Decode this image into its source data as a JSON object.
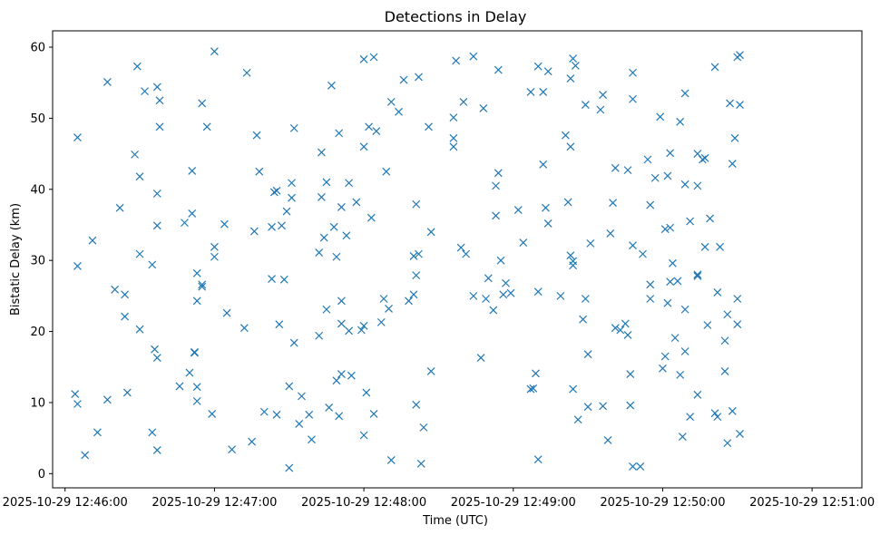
{
  "chart_data": {
    "type": "scatter",
    "title": "Detections in Delay",
    "xlabel": "Time (UTC)",
    "ylabel": "Bistatic Delay (km)",
    "x_type": "datetime",
    "xlim": [
      "2025-10-29 12:45:55",
      "2025-10-29 12:51:20"
    ],
    "ylim": [
      -2.0,
      62.3
    ],
    "x_ticks": [
      "2025-10-29 12:46:00",
      "2025-10-29 12:47:00",
      "2025-10-29 12:48:00",
      "2025-10-29 12:49:00",
      "2025-10-29 12:50:00",
      "2025-10-29 12:51:00"
    ],
    "x_tick_labels": [
      "2025-10-29 12:46:00",
      "2025-10-29 12:47:00",
      "2025-10-29 12:48:00",
      "2025-10-29 12:49:00",
      "2025-10-29 12:50:00",
      "2025-10-29 12:51:00"
    ],
    "y_ticks": [
      0,
      10,
      20,
      30,
      40,
      50,
      60
    ],
    "y_tick_labels": [
      "0",
      "10",
      "20",
      "30",
      "40",
      "50",
      "60"
    ],
    "marker": "x",
    "color": "#1f77b4",
    "grid": false,
    "legend": "none",
    "points": [
      [
        "2025-10-29 12:46:04",
        11.2
      ],
      [
        "2025-10-29 12:46:05",
        9.8
      ],
      [
        "2025-10-29 12:46:05",
        47.3
      ],
      [
        "2025-10-29 12:46:05",
        29.2
      ],
      [
        "2025-10-29 12:46:08",
        2.6
      ],
      [
        "2025-10-29 12:46:11",
        32.8
      ],
      [
        "2025-10-29 12:46:13",
        5.8
      ],
      [
        "2025-10-29 12:46:17",
        55.1
      ],
      [
        "2025-10-29 12:46:17",
        10.4
      ],
      [
        "2025-10-29 12:46:20",
        25.9
      ],
      [
        "2025-10-29 12:46:22",
        37.4
      ],
      [
        "2025-10-29 12:46:24",
        25.2
      ],
      [
        "2025-10-29 12:46:24",
        22.1
      ],
      [
        "2025-10-29 12:46:25",
        11.4
      ],
      [
        "2025-10-29 12:46:28",
        44.9
      ],
      [
        "2025-10-29 12:46:29",
        57.3
      ],
      [
        "2025-10-29 12:46:30",
        41.8
      ],
      [
        "2025-10-29 12:46:30",
        30.9
      ],
      [
        "2025-10-29 12:46:30",
        20.3
      ],
      [
        "2025-10-29 12:46:32",
        53.8
      ],
      [
        "2025-10-29 12:46:35",
        29.4
      ],
      [
        "2025-10-29 12:46:35",
        5.8
      ],
      [
        "2025-10-29 12:46:36",
        17.5
      ],
      [
        "2025-10-29 12:46:37",
        54.4
      ],
      [
        "2025-10-29 12:46:37",
        39.4
      ],
      [
        "2025-10-29 12:46:37",
        34.9
      ],
      [
        "2025-10-29 12:46:37",
        16.3
      ],
      [
        "2025-10-29 12:46:37",
        3.3
      ],
      [
        "2025-10-29 12:46:38",
        52.5
      ],
      [
        "2025-10-29 12:46:38",
        48.8
      ],
      [
        "2025-10-29 12:46:46",
        12.3
      ],
      [
        "2025-10-29 12:46:48",
        35.3
      ],
      [
        "2025-10-29 12:46:50",
        14.2
      ],
      [
        "2025-10-29 12:46:51",
        42.6
      ],
      [
        "2025-10-29 12:46:51",
        36.6
      ],
      [
        "2025-10-29 12:46:52",
        17.0
      ],
      [
        "2025-10-29 12:46:52",
        17.1
      ],
      [
        "2025-10-29 12:46:53",
        28.2
      ],
      [
        "2025-10-29 12:46:53",
        24.3
      ],
      [
        "2025-10-29 12:46:53",
        12.2
      ],
      [
        "2025-10-29 12:46:53",
        10.2
      ],
      [
        "2025-10-29 12:46:55",
        26.6
      ],
      [
        "2025-10-29 12:46:55",
        26.3
      ],
      [
        "2025-10-29 12:46:55",
        52.1
      ],
      [
        "2025-10-29 12:46:57",
        48.8
      ],
      [
        "2025-10-29 12:46:59",
        8.4
      ],
      [
        "2025-10-29 12:47:00",
        59.4
      ],
      [
        "2025-10-29 12:47:00",
        31.9
      ],
      [
        "2025-10-29 12:47:00",
        30.5
      ],
      [
        "2025-10-29 12:47:04",
        35.1
      ],
      [
        "2025-10-29 12:47:05",
        22.6
      ],
      [
        "2025-10-29 12:47:07",
        3.4
      ],
      [
        "2025-10-29 12:47:12",
        20.5
      ],
      [
        "2025-10-29 12:47:13",
        56.4
      ],
      [
        "2025-10-29 12:47:15",
        4.5
      ],
      [
        "2025-10-29 12:47:16",
        34.1
      ],
      [
        "2025-10-29 12:47:17",
        47.6
      ],
      [
        "2025-10-29 12:47:18",
        42.5
      ],
      [
        "2025-10-29 12:47:20",
        8.7
      ],
      [
        "2025-10-29 12:47:23",
        34.7
      ],
      [
        "2025-10-29 12:47:23",
        27.4
      ],
      [
        "2025-10-29 12:47:24",
        39.6
      ],
      [
        "2025-10-29 12:47:25",
        8.3
      ],
      [
        "2025-10-29 12:47:25",
        39.8
      ],
      [
        "2025-10-29 12:47:26",
        21.0
      ],
      [
        "2025-10-29 12:47:27",
        34.9
      ],
      [
        "2025-10-29 12:47:28",
        27.3
      ],
      [
        "2025-10-29 12:47:29",
        36.9
      ],
      [
        "2025-10-29 12:47:30",
        12.3
      ],
      [
        "2025-10-29 12:47:30",
        0.8
      ],
      [
        "2025-10-29 12:47:31",
        40.9
      ],
      [
        "2025-10-29 12:47:31",
        38.8
      ],
      [
        "2025-10-29 12:47:32",
        48.6
      ],
      [
        "2025-10-29 12:47:32",
        18.4
      ],
      [
        "2025-10-29 12:47:34",
        7.0
      ],
      [
        "2025-10-29 12:47:35",
        10.9
      ],
      [
        "2025-10-29 12:47:38",
        8.3
      ],
      [
        "2025-10-29 12:47:39",
        4.8
      ],
      [
        "2025-10-29 12:47:42",
        31.1
      ],
      [
        "2025-10-29 12:47:42",
        19.4
      ],
      [
        "2025-10-29 12:47:43",
        45.2
      ],
      [
        "2025-10-29 12:47:43",
        38.9
      ],
      [
        "2025-10-29 12:47:44",
        33.2
      ],
      [
        "2025-10-29 12:47:45",
        41.0
      ],
      [
        "2025-10-29 12:47:45",
        23.1
      ],
      [
        "2025-10-29 12:47:46",
        9.3
      ],
      [
        "2025-10-29 12:47:47",
        54.6
      ],
      [
        "2025-10-29 12:47:48",
        34.7
      ],
      [
        "2025-10-29 12:47:49",
        30.5
      ],
      [
        "2025-10-29 12:47:49",
        13.1
      ],
      [
        "2025-10-29 12:47:50",
        8.1
      ],
      [
        "2025-10-29 12:47:50",
        47.9
      ],
      [
        "2025-10-29 12:47:51",
        37.5
      ],
      [
        "2025-10-29 12:47:51",
        24.3
      ],
      [
        "2025-10-29 12:47:51",
        21.1
      ],
      [
        "2025-10-29 12:47:51",
        14.0
      ],
      [
        "2025-10-29 12:47:53",
        33.5
      ],
      [
        "2025-10-29 12:47:54",
        40.9
      ],
      [
        "2025-10-29 12:47:54",
        20.1
      ],
      [
        "2025-10-29 12:47:55",
        13.8
      ],
      [
        "2025-10-29 12:47:57",
        38.2
      ],
      [
        "2025-10-29 12:47:59",
        20.2
      ],
      [
        "2025-10-29 12:48:00",
        5.4
      ],
      [
        "2025-10-29 12:48:00",
        20.8
      ],
      [
        "2025-10-29 12:48:00",
        58.3
      ],
      [
        "2025-10-29 12:48:00",
        46.0
      ],
      [
        "2025-10-29 12:48:01",
        11.4
      ],
      [
        "2025-10-29 12:48:02",
        48.8
      ],
      [
        "2025-10-29 12:48:03",
        36.0
      ],
      [
        "2025-10-29 12:48:04",
        58.6
      ],
      [
        "2025-10-29 12:48:04",
        8.4
      ],
      [
        "2025-10-29 12:48:05",
        48.2
      ],
      [
        "2025-10-29 12:48:07",
        21.3
      ],
      [
        "2025-10-29 12:48:08",
        24.6
      ],
      [
        "2025-10-29 12:48:09",
        42.5
      ],
      [
        "2025-10-29 12:48:10",
        23.2
      ],
      [
        "2025-10-29 12:48:11",
        1.9
      ],
      [
        "2025-10-29 12:48:11",
        52.3
      ],
      [
        "2025-10-29 12:48:14",
        50.9
      ],
      [
        "2025-10-29 12:48:16",
        55.4
      ],
      [
        "2025-10-29 12:48:18",
        24.3
      ],
      [
        "2025-10-29 12:48:20",
        25.2
      ],
      [
        "2025-10-29 12:48:20",
        30.6
      ],
      [
        "2025-10-29 12:48:21",
        37.9
      ],
      [
        "2025-10-29 12:48:21",
        27.9
      ],
      [
        "2025-10-29 12:48:21",
        9.7
      ],
      [
        "2025-10-29 12:48:22",
        55.8
      ],
      [
        "2025-10-29 12:48:22",
        30.9
      ],
      [
        "2025-10-29 12:48:23",
        1.4
      ],
      [
        "2025-10-29 12:48:24",
        6.5
      ],
      [
        "2025-10-29 12:48:26",
        48.8
      ],
      [
        "2025-10-29 12:48:27",
        34.0
      ],
      [
        "2025-10-29 12:48:27",
        14.4
      ],
      [
        "2025-10-29 12:48:36",
        50.1
      ],
      [
        "2025-10-29 12:48:36",
        47.2
      ],
      [
        "2025-10-29 12:48:36",
        46.0
      ],
      [
        "2025-10-29 12:48:37",
        58.1
      ],
      [
        "2025-10-29 12:48:39",
        31.8
      ],
      [
        "2025-10-29 12:48:40",
        52.3
      ],
      [
        "2025-10-29 12:48:41",
        30.9
      ],
      [
        "2025-10-29 12:48:44",
        58.7
      ],
      [
        "2025-10-29 12:48:44",
        25.0
      ],
      [
        "2025-10-29 12:48:47",
        16.3
      ],
      [
        "2025-10-29 12:48:48",
        51.4
      ],
      [
        "2025-10-29 12:48:49",
        24.6
      ],
      [
        "2025-10-29 12:48:50",
        27.5
      ],
      [
        "2025-10-29 12:48:52",
        23.0
      ],
      [
        "2025-10-29 12:48:53",
        36.3
      ],
      [
        "2025-10-29 12:48:53",
        40.5
      ],
      [
        "2025-10-29 12:48:54",
        42.3
      ],
      [
        "2025-10-29 12:48:54",
        56.8
      ],
      [
        "2025-10-29 12:48:55",
        30.0
      ],
      [
        "2025-10-29 12:48:56",
        25.2
      ],
      [
        "2025-10-29 12:48:57",
        26.8
      ],
      [
        "2025-10-29 12:48:59",
        25.4
      ],
      [
        "2025-10-29 12:49:02",
        37.1
      ],
      [
        "2025-10-29 12:49:04",
        32.5
      ],
      [
        "2025-10-29 12:49:07",
        53.7
      ],
      [
        "2025-10-29 12:49:07",
        11.9
      ],
      [
        "2025-10-29 12:49:08",
        12.0
      ],
      [
        "2025-10-29 12:49:09",
        14.1
      ],
      [
        "2025-10-29 12:49:10",
        57.3
      ],
      [
        "2025-10-29 12:49:10",
        25.6
      ],
      [
        "2025-10-29 12:49:10",
        2.0
      ],
      [
        "2025-10-29 12:49:12",
        53.7
      ],
      [
        "2025-10-29 12:49:12",
        43.5
      ],
      [
        "2025-10-29 12:49:13",
        37.4
      ],
      [
        "2025-10-29 12:49:14",
        35.2
      ],
      [
        "2025-10-29 12:49:14",
        56.6
      ],
      [
        "2025-10-29 12:49:19",
        25.0
      ],
      [
        "2025-10-29 12:49:21",
        47.6
      ],
      [
        "2025-10-29 12:49:22",
        38.2
      ],
      [
        "2025-10-29 12:49:23",
        55.6
      ],
      [
        "2025-10-29 12:49:23",
        46.0
      ],
      [
        "2025-10-29 12:49:23",
        30.7
      ],
      [
        "2025-10-29 12:49:24",
        29.9
      ],
      [
        "2025-10-29 12:49:24",
        29.3
      ],
      [
        "2025-10-29 12:49:24",
        11.9
      ],
      [
        "2025-10-29 12:49:24",
        58.4
      ],
      [
        "2025-10-29 12:49:25",
        57.4
      ],
      [
        "2025-10-29 12:49:26",
        7.6
      ],
      [
        "2025-10-29 12:49:28",
        21.7
      ],
      [
        "2025-10-29 12:49:29",
        51.9
      ],
      [
        "2025-10-29 12:49:29",
        24.6
      ],
      [
        "2025-10-29 12:49:30",
        16.8
      ],
      [
        "2025-10-29 12:49:30",
        9.4
      ],
      [
        "2025-10-29 12:49:31",
        32.4
      ],
      [
        "2025-10-29 12:49:35",
        51.2
      ],
      [
        "2025-10-29 12:49:36",
        53.3
      ],
      [
        "2025-10-29 12:49:36",
        9.5
      ],
      [
        "2025-10-29 12:49:38",
        4.7
      ],
      [
        "2025-10-29 12:49:39",
        33.8
      ],
      [
        "2025-10-29 12:49:40",
        38.1
      ],
      [
        "2025-10-29 12:49:41",
        20.5
      ],
      [
        "2025-10-29 12:49:41",
        43.0
      ],
      [
        "2025-10-29 12:49:43",
        20.2
      ],
      [
        "2025-10-29 12:49:45",
        21.1
      ],
      [
        "2025-10-29 12:49:46",
        42.7
      ],
      [
        "2025-10-29 12:49:46",
        19.5
      ],
      [
        "2025-10-29 12:49:47",
        14.0
      ],
      [
        "2025-10-29 12:49:47",
        9.6
      ],
      [
        "2025-10-29 12:49:48",
        56.4
      ],
      [
        "2025-10-29 12:49:48",
        52.7
      ],
      [
        "2025-10-29 12:49:48",
        32.1
      ],
      [
        "2025-10-29 12:49:48",
        1.0
      ],
      [
        "2025-10-29 12:49:51",
        1.0
      ],
      [
        "2025-10-29 12:49:52",
        30.9
      ],
      [
        "2025-10-29 12:49:54",
        44.2
      ],
      [
        "2025-10-29 12:49:55",
        37.8
      ],
      [
        "2025-10-29 12:49:55",
        26.6
      ],
      [
        "2025-10-29 12:49:55",
        24.6
      ],
      [
        "2025-10-29 12:49:57",
        41.6
      ],
      [
        "2025-10-29 12:49:59",
        50.2
      ],
      [
        "2025-10-29 12:50:00",
        14.8
      ],
      [
        "2025-10-29 12:50:01",
        34.4
      ],
      [
        "2025-10-29 12:50:01",
        16.5
      ],
      [
        "2025-10-29 12:50:02",
        41.9
      ],
      [
        "2025-10-29 12:50:02",
        24.0
      ],
      [
        "2025-10-29 12:50:03",
        45.1
      ],
      [
        "2025-10-29 12:50:03",
        34.6
      ],
      [
        "2025-10-29 12:50:03",
        27.0
      ],
      [
        "2025-10-29 12:50:04",
        29.6
      ],
      [
        "2025-10-29 12:50:05",
        19.1
      ],
      [
        "2025-10-29 12:50:06",
        27.1
      ],
      [
        "2025-10-29 12:50:07",
        49.5
      ],
      [
        "2025-10-29 12:50:07",
        13.9
      ],
      [
        "2025-10-29 12:50:08",
        5.2
      ],
      [
        "2025-10-29 12:50:09",
        53.5
      ],
      [
        "2025-10-29 12:50:09",
        40.7
      ],
      [
        "2025-10-29 12:50:09",
        23.1
      ],
      [
        "2025-10-29 12:50:09",
        17.2
      ],
      [
        "2025-10-29 12:50:11",
        35.5
      ],
      [
        "2025-10-29 12:50:11",
        8.0
      ],
      [
        "2025-10-29 12:50:14",
        45.0
      ],
      [
        "2025-10-29 12:50:14",
        40.5
      ],
      [
        "2025-10-29 12:50:14",
        27.8
      ],
      [
        "2025-10-29 12:50:14",
        28.0
      ],
      [
        "2025-10-29 12:50:14",
        11.1
      ],
      [
        "2025-10-29 12:50:16",
        44.2
      ],
      [
        "2025-10-29 12:50:17",
        44.4
      ],
      [
        "2025-10-29 12:50:17",
        31.9
      ],
      [
        "2025-10-29 12:50:18",
        20.9
      ],
      [
        "2025-10-29 12:50:19",
        35.9
      ],
      [
        "2025-10-29 12:50:21",
        57.2
      ],
      [
        "2025-10-29 12:50:21",
        8.5
      ],
      [
        "2025-10-29 12:50:22",
        8.0
      ],
      [
        "2025-10-29 12:50:22",
        25.5
      ],
      [
        "2025-10-29 12:50:23",
        31.9
      ],
      [
        "2025-10-29 12:50:25",
        18.7
      ],
      [
        "2025-10-29 12:50:25",
        14.4
      ],
      [
        "2025-10-29 12:50:26",
        4.3
      ],
      [
        "2025-10-29 12:50:26",
        22.4
      ],
      [
        "2025-10-29 12:50:27",
        52.1
      ],
      [
        "2025-10-29 12:50:28",
        43.6
      ],
      [
        "2025-10-29 12:50:28",
        8.8
      ],
      [
        "2025-10-29 12:50:29",
        47.2
      ],
      [
        "2025-10-29 12:50:30",
        58.6
      ],
      [
        "2025-10-29 12:50:30",
        24.6
      ],
      [
        "2025-10-29 12:50:30",
        21.0
      ],
      [
        "2025-10-29 12:50:31",
        5.6
      ],
      [
        "2025-10-29 12:50:31",
        58.9
      ],
      [
        "2025-10-29 12:50:31",
        51.9
      ]
    ]
  }
}
